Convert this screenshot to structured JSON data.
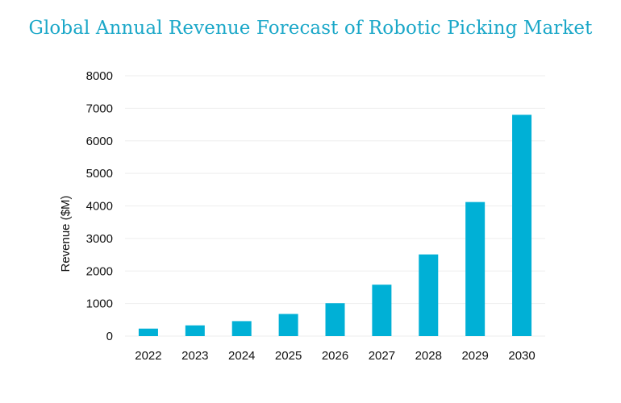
{
  "chart_data": {
    "type": "bar",
    "title": "Global Annual Revenue Forecast of Robotic Picking Market",
    "xlabel": "",
    "ylabel": "Revenue ($M)",
    "categories": [
      "2022",
      "2023",
      "2024",
      "2025",
      "2026",
      "2027",
      "2028",
      "2029",
      "2030"
    ],
    "values": [
      230,
      330,
      460,
      680,
      1010,
      1580,
      2510,
      4120,
      6800
    ],
    "ylim": [
      0,
      8000
    ],
    "yticks": [
      0,
      1000,
      2000,
      3000,
      4000,
      5000,
      6000,
      7000,
      8000
    ],
    "grid": true,
    "legend": "none",
    "colors": {
      "bar": "#00b0d6",
      "title": "#1aa7c8",
      "grid": "#eeeeee"
    }
  }
}
